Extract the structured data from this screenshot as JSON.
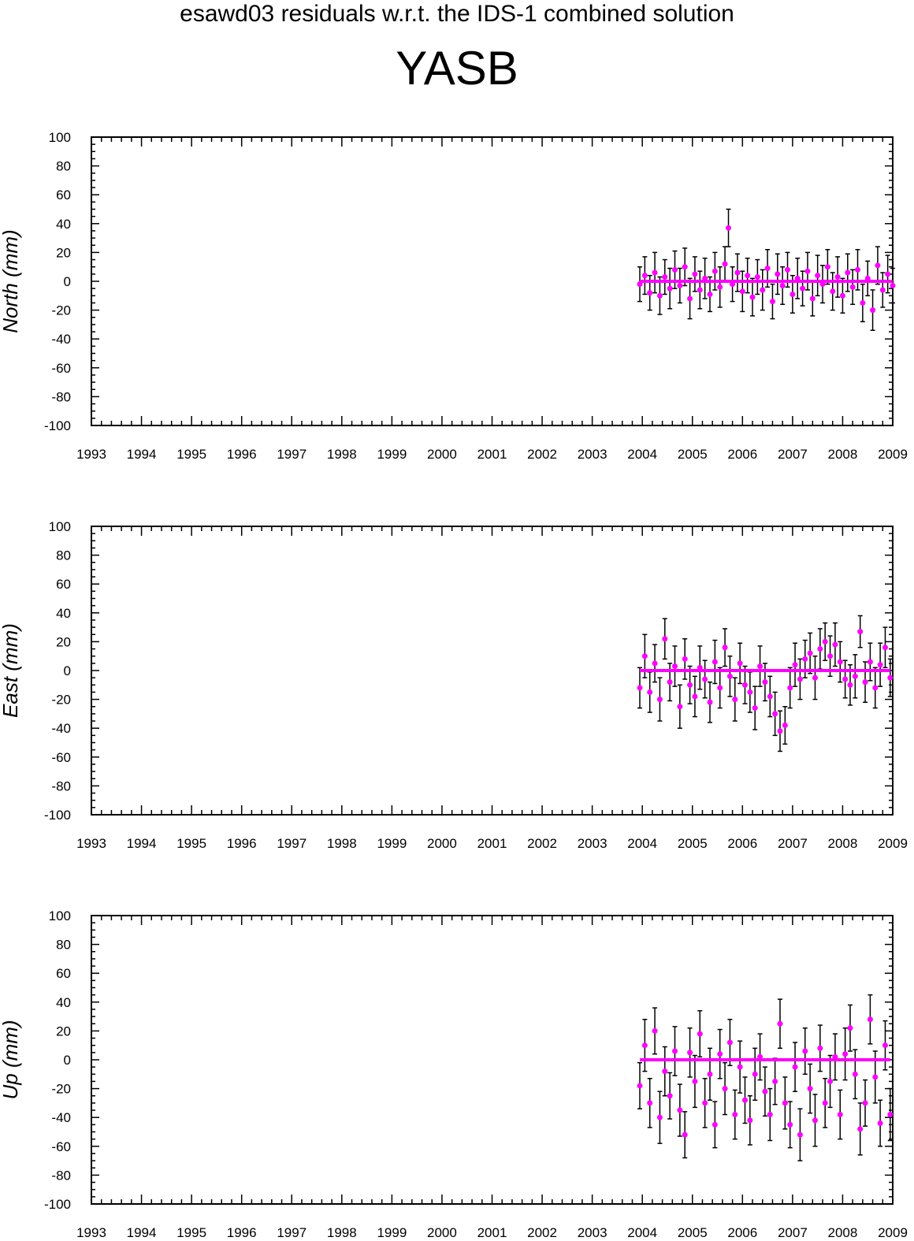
{
  "figure": {
    "supertitle": "esawd03 residuals w.r.t. the IDS-1 combined solution",
    "station": "YASB",
    "colors": {
      "points": "#ff00ff",
      "error_bars": "#000000",
      "axes": "#000000",
      "background": "#ffffff"
    }
  },
  "chart_data": [
    {
      "type": "scatter",
      "ylabel": "North (mm)",
      "xlim": [
        1993,
        2009
      ],
      "ylim": [
        -100,
        100
      ],
      "x_ticks": [
        "1993",
        "1994",
        "1995",
        "1996",
        "1997",
        "1998",
        "1999",
        "2000",
        "2001",
        "2002",
        "2003",
        "2004",
        "2005",
        "2006",
        "2007",
        "2008",
        "2009"
      ],
      "y_ticks": [
        "100",
        "80",
        "60",
        "40",
        "20",
        "0",
        "-20",
        "-40",
        "-60",
        "-80",
        "-100"
      ],
      "grid": false,
      "zero_line": true,
      "series": [
        {
          "x": [
            2003.95,
            2004.05,
            2004.15,
            2004.25,
            2004.35,
            2004.45,
            2004.55,
            2004.65,
            2004.75,
            2004.85,
            2004.95,
            2005.05,
            2005.15,
            2005.25,
            2005.35,
            2005.45,
            2005.55,
            2005.65,
            2005.72,
            2005.8,
            2005.9,
            2006.0,
            2006.1,
            2006.2,
            2006.3,
            2006.4,
            2006.5,
            2006.6,
            2006.7,
            2006.8,
            2006.9,
            2007.0,
            2007.1,
            2007.2,
            2007.3,
            2007.4,
            2007.5,
            2007.6,
            2007.7,
            2007.8,
            2007.9,
            2008.0,
            2008.1,
            2008.2,
            2008.3,
            2008.4,
            2008.5,
            2008.6,
            2008.7,
            2008.8,
            2008.9,
            2009.0
          ],
          "y": [
            -2,
            4,
            -8,
            6,
            -10,
            3,
            -5,
            8,
            -3,
            10,
            -12,
            5,
            -6,
            2,
            -9,
            7,
            -4,
            12,
            37,
            -2,
            6,
            -7,
            4,
            -11,
            3,
            -6,
            9,
            -14,
            5,
            -3,
            8,
            -9,
            2,
            -5,
            7,
            -12,
            4,
            -2,
            10,
            -7,
            3,
            -10,
            6,
            -4,
            8,
            -15,
            2,
            -20,
            11,
            -6,
            5,
            -3
          ],
          "err": [
            12,
            13,
            12,
            14,
            13,
            12,
            14,
            13,
            12,
            13,
            14,
            12,
            13,
            14,
            12,
            13,
            14,
            12,
            13,
            12,
            13,
            14,
            12,
            13,
            12,
            14,
            13,
            12,
            14,
            13,
            12,
            13,
            14,
            12,
            13,
            12,
            14,
            13,
            12,
            13,
            14,
            12,
            13,
            12,
            14,
            13,
            12,
            14,
            13,
            12,
            13,
            12
          ]
        }
      ]
    },
    {
      "type": "scatter",
      "ylabel": "East (mm)",
      "xlim": [
        1993,
        2009
      ],
      "ylim": [
        -100,
        100
      ],
      "x_ticks": [
        "1993",
        "1994",
        "1995",
        "1996",
        "1997",
        "1998",
        "1999",
        "2000",
        "2001",
        "2002",
        "2003",
        "2004",
        "2005",
        "2006",
        "2007",
        "2008",
        "2009"
      ],
      "y_ticks": [
        "100",
        "80",
        "60",
        "40",
        "20",
        "0",
        "-20",
        "-40",
        "-60",
        "-80",
        "-100"
      ],
      "grid": false,
      "zero_line": true,
      "series": [
        {
          "x": [
            2003.95,
            2004.05,
            2004.15,
            2004.25,
            2004.35,
            2004.45,
            2004.55,
            2004.65,
            2004.75,
            2004.85,
            2004.95,
            2005.05,
            2005.15,
            2005.25,
            2005.35,
            2005.45,
            2005.55,
            2005.65,
            2005.75,
            2005.85,
            2005.95,
            2006.05,
            2006.15,
            2006.25,
            2006.35,
            2006.45,
            2006.55,
            2006.65,
            2006.75,
            2006.85,
            2006.95,
            2007.05,
            2007.15,
            2007.25,
            2007.35,
            2007.45,
            2007.55,
            2007.65,
            2007.75,
            2007.85,
            2007.95,
            2008.05,
            2008.15,
            2008.25,
            2008.35,
            2008.45,
            2008.55,
            2008.65,
            2008.75,
            2008.85,
            2008.95
          ],
          "y": [
            -12,
            10,
            -15,
            5,
            -20,
            22,
            -8,
            3,
            -25,
            8,
            -10,
            -18,
            2,
            -6,
            -22,
            6,
            -12,
            16,
            -4,
            -20,
            5,
            -10,
            -15,
            -26,
            3,
            -8,
            -18,
            -30,
            -42,
            -38,
            -12,
            4,
            -6,
            8,
            12,
            -5,
            15,
            20,
            10,
            18,
            6,
            -6,
            -10,
            -4,
            27,
            -8,
            6,
            -12,
            4,
            16,
            -5
          ],
          "err": [
            14,
            15,
            14,
            13,
            15,
            14,
            13,
            14,
            15,
            14,
            13,
            14,
            15,
            13,
            14,
            15,
            14,
            13,
            14,
            15,
            14,
            13,
            14,
            15,
            14,
            13,
            14,
            15,
            14,
            13,
            14,
            15,
            14,
            13,
            14,
            15,
            14,
            13,
            14,
            15,
            14,
            13,
            14,
            15,
            11,
            14,
            13,
            14,
            15,
            14,
            13
          ]
        }
      ]
    },
    {
      "type": "scatter",
      "ylabel": "Up (mm)",
      "xlim": [
        1993,
        2009
      ],
      "ylim": [
        -100,
        100
      ],
      "x_ticks": [
        "1993",
        "1994",
        "1995",
        "1996",
        "1997",
        "1998",
        "1999",
        "2000",
        "2001",
        "2002",
        "2003",
        "2004",
        "2005",
        "2006",
        "2007",
        "2008",
        "2009"
      ],
      "y_ticks": [
        "100",
        "80",
        "60",
        "40",
        "20",
        "0",
        "-20",
        "-40",
        "-60",
        "-80",
        "-100"
      ],
      "grid": false,
      "zero_line": true,
      "series": [
        {
          "x": [
            2003.95,
            2004.05,
            2004.15,
            2004.25,
            2004.35,
            2004.45,
            2004.55,
            2004.65,
            2004.75,
            2004.85,
            2004.95,
            2005.05,
            2005.15,
            2005.25,
            2005.35,
            2005.45,
            2005.55,
            2005.65,
            2005.75,
            2005.85,
            2005.95,
            2006.05,
            2006.15,
            2006.25,
            2006.35,
            2006.45,
            2006.55,
            2006.65,
            2006.75,
            2006.85,
            2006.95,
            2007.05,
            2007.15,
            2007.25,
            2007.35,
            2007.45,
            2007.55,
            2007.65,
            2007.75,
            2007.85,
            2007.95,
            2008.05,
            2008.15,
            2008.25,
            2008.35,
            2008.45,
            2008.55,
            2008.65,
            2008.75,
            2008.85,
            2008.95
          ],
          "y": [
            -18,
            10,
            -30,
            20,
            -40,
            -8,
            -25,
            6,
            -35,
            -52,
            5,
            -15,
            18,
            -30,
            -10,
            -45,
            4,
            -20,
            12,
            -38,
            -5,
            -28,
            -42,
            -10,
            2,
            -22,
            -38,
            -15,
            25,
            -30,
            -45,
            -5,
            -52,
            6,
            -20,
            -42,
            8,
            -30,
            -15,
            2,
            -38,
            4,
            22,
            -10,
            -48,
            -30,
            28,
            -12,
            -44,
            10,
            -38
          ],
          "err": [
            16,
            18,
            17,
            16,
            18,
            17,
            16,
            17,
            18,
            16,
            17,
            18,
            16,
            17,
            18,
            16,
            17,
            18,
            16,
            17,
            18,
            16,
            17,
            18,
            16,
            17,
            18,
            16,
            17,
            18,
            16,
            17,
            18,
            16,
            17,
            18,
            16,
            17,
            18,
            16,
            17,
            18,
            16,
            17,
            18,
            16,
            17,
            18,
            16,
            17,
            18
          ]
        }
      ]
    }
  ]
}
